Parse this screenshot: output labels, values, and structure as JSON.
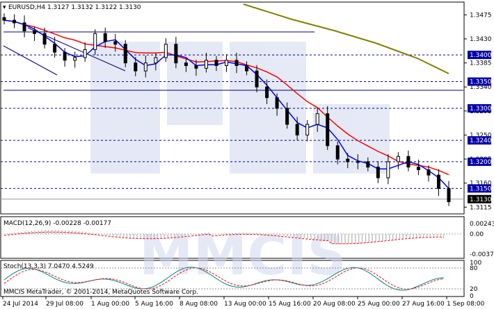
{
  "header": {
    "symbol_line": "EURUSD,H4  1.3127 1.3132 1.3122 1.3130"
  },
  "colors": {
    "ma_fast": "#0000ff",
    "ma_mid": "#ff0000",
    "ma_slow": "#808000",
    "candle": "#000000",
    "level_line": "#0000aa",
    "label_bg": "#0000aa",
    "current_label_bg": "#000000",
    "macd_hist": "#c0c0c0",
    "macd_signal": "#ff0000",
    "stoch_main": "#008080",
    "stoch_signal": "#ff0000",
    "watermark": "#cfd8ee"
  },
  "price_axis": {
    "ticks": [
      "1.3475",
      "1.3430",
      "1.3385",
      "1.3340",
      "1.3295",
      "1.3250",
      "1.3205",
      "1.3160",
      "1.3115"
    ],
    "level_labels": [
      "1.3400",
      "1.3350",
      "1.3300",
      "1.3240",
      "1.3200",
      "1.3150"
    ],
    "current_label": "1.3130"
  },
  "macd": {
    "title": "MACD(12,26,9) -0.00228 -0.00177",
    "ticks": [
      "0.00243",
      "0.00",
      "-0.00375"
    ]
  },
  "stoch": {
    "title": "Stoch(13,3,3) 7.0470 4.5249",
    "ticks": [
      "100",
      "80",
      "20",
      "0"
    ]
  },
  "time_axis": {
    "labels": [
      "24 Jul 2014",
      "29 Jul 08:00",
      "1 Aug 00:00",
      "5 Aug 16:00",
      "8 Aug 08:00",
      "13 Aug 00:00",
      "15 Aug 16:00",
      "20 Aug 08:00",
      "25 Aug 00:00",
      "27 Aug 16:00",
      "1 Sep 08:00"
    ]
  },
  "footer": {
    "copyright": "MMCIS MetaTrader, © 2001-2014, MetaQuotes Software Corp."
  },
  "watermark": {
    "text": "MMCIS"
  },
  "chart_data": {
    "type": "candlestick",
    "timeframe": "H4",
    "series": [
      {
        "name": "EURUSD",
        "closes_approx": [
          1.3465,
          1.346,
          1.3445,
          1.344,
          1.342,
          1.3405,
          1.339,
          1.3395,
          1.341,
          1.344,
          1.3425,
          1.342,
          1.3385,
          1.337,
          1.3385,
          1.3395,
          1.342,
          1.3385,
          1.338,
          1.3375,
          1.339,
          1.338,
          1.339,
          1.338,
          1.337,
          1.334,
          1.332,
          1.33,
          1.327,
          1.325,
          1.327,
          1.329,
          1.323,
          1.3205,
          1.32,
          1.32,
          1.319,
          1.317,
          1.32,
          1.321,
          1.319,
          1.3185,
          1.3175,
          1.315,
          1.3125
        ]
      }
    ],
    "level_lines": [
      1.34,
      1.335,
      1.33,
      1.324,
      1.32,
      1.315
    ],
    "current_price": 1.313,
    "ylim": [
      1.3105,
      1.3495
    ]
  }
}
